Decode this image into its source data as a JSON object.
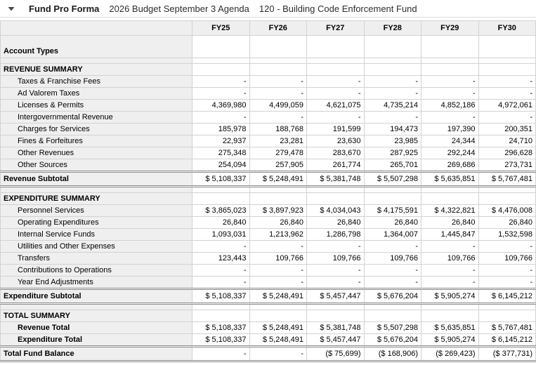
{
  "page": {
    "title": "Fund Pro Forma",
    "budget_name": "2026 Budget September 3 Agenda",
    "fund_name": "120 - Building Code Enforcement Fund",
    "caret_icon": "collapse-caret"
  },
  "colors": {
    "label_column_bg": "#efefef",
    "grid_line": "#d2d2d2",
    "double_rule": "#8a8a8a",
    "text": "#000000"
  },
  "table": {
    "columns": [
      "FY25",
      "FY26",
      "FY27",
      "FY28",
      "FY29",
      "FY30"
    ],
    "rows": [
      {
        "style": "account",
        "label": "Account Types",
        "values": [
          "",
          "",
          "",
          "",
          "",
          ""
        ]
      },
      {
        "style": "spacer",
        "label": "",
        "values": [
          "",
          "",
          "",
          "",
          "",
          ""
        ]
      },
      {
        "style": "section",
        "label": "REVENUE SUMMARY",
        "values": [
          "",
          "",
          "",
          "",
          "",
          ""
        ]
      },
      {
        "style": "item",
        "label": "Taxes & Franchise Fees",
        "values": [
          "-",
          "-",
          "-",
          "-",
          "-",
          "-"
        ]
      },
      {
        "style": "item",
        "label": "Ad Valorem Taxes",
        "values": [
          "-",
          "-",
          "-",
          "-",
          "-",
          "-"
        ]
      },
      {
        "style": "item",
        "label": "Licenses & Permits",
        "values": [
          "4,369,980",
          "4,499,059",
          "4,621,075",
          "4,735,214",
          "4,852,186",
          "4,972,061"
        ]
      },
      {
        "style": "item",
        "label": "Intergovernmental Revenue",
        "values": [
          "-",
          "-",
          "-",
          "-",
          "-",
          "-"
        ]
      },
      {
        "style": "item",
        "label": "Charges for Services",
        "values": [
          "185,978",
          "188,768",
          "191,599",
          "194,473",
          "197,390",
          "200,351"
        ]
      },
      {
        "style": "item",
        "label": "Fines & Forfeitures",
        "values": [
          "22,937",
          "23,281",
          "23,630",
          "23,985",
          "24,344",
          "24,710"
        ]
      },
      {
        "style": "item",
        "label": "Other Revenues",
        "values": [
          "275,348",
          "279,478",
          "283,670",
          "287,925",
          "292,244",
          "296,628"
        ]
      },
      {
        "style": "item",
        "label": "Other Sources",
        "values": [
          "254,094",
          "257,905",
          "261,774",
          "265,701",
          "269,686",
          "273,731"
        ]
      },
      {
        "style": "subtotal",
        "label": "Revenue Subtotal",
        "values": [
          "$ 5,108,337",
          "$ 5,248,491",
          "$ 5,381,748",
          "$ 5,507,298",
          "$ 5,635,851",
          "$ 5,767,481"
        ]
      },
      {
        "style": "spacer",
        "label": "",
        "values": [
          "",
          "",
          "",
          "",
          "",
          ""
        ]
      },
      {
        "style": "section",
        "label": "EXPENDITURE SUMMARY",
        "values": [
          "",
          "",
          "",
          "",
          "",
          ""
        ]
      },
      {
        "style": "item",
        "label": "Personnel Services",
        "values": [
          "$ 3,865,023",
          "$ 3,897,923",
          "$ 4,034,043",
          "$ 4,175,591",
          "$ 4,322,821",
          "$ 4,476,008"
        ]
      },
      {
        "style": "item",
        "label": "Operating Expenditures",
        "values": [
          "26,840",
          "26,840",
          "26,840",
          "26,840",
          "26,840",
          "26,840"
        ]
      },
      {
        "style": "item",
        "label": "Internal Service Funds",
        "values": [
          "1,093,031",
          "1,213,962",
          "1,286,798",
          "1,364,007",
          "1,445,847",
          "1,532,598"
        ]
      },
      {
        "style": "item",
        "label": "Utilities and Other Expenses",
        "values": [
          "-",
          "-",
          "-",
          "-",
          "-",
          "-"
        ]
      },
      {
        "style": "item",
        "label": "Transfers",
        "values": [
          "123,443",
          "109,766",
          "109,766",
          "109,766",
          "109,766",
          "109,766"
        ]
      },
      {
        "style": "item",
        "label": "Contributions to Operations",
        "values": [
          "-",
          "-",
          "-",
          "-",
          "-",
          "-"
        ]
      },
      {
        "style": "item",
        "label": "Year End Adjustments",
        "values": [
          "-",
          "-",
          "-",
          "-",
          "-",
          "-"
        ]
      },
      {
        "style": "subtotal",
        "label": "Expenditure Subtotal",
        "values": [
          "$ 5,108,337",
          "$ 5,248,491",
          "$ 5,457,447",
          "$ 5,676,204",
          "$ 5,905,274",
          "$ 6,145,212"
        ]
      },
      {
        "style": "spacer",
        "label": "",
        "values": [
          "",
          "",
          "",
          "",
          "",
          ""
        ]
      },
      {
        "style": "section",
        "label": "TOTAL SUMMARY",
        "values": [
          "",
          "",
          "",
          "",
          "",
          ""
        ]
      },
      {
        "style": "item-bold",
        "label": "Revenue Total",
        "values": [
          "$ 5,108,337",
          "$ 5,248,491",
          "$ 5,381,748",
          "$ 5,507,298",
          "$ 5,635,851",
          "$ 5,767,481"
        ]
      },
      {
        "style": "item-bold",
        "label": "Expenditure Total",
        "values": [
          "$ 5,108,337",
          "$ 5,248,491",
          "$ 5,457,447",
          "$ 5,676,204",
          "$ 5,905,274",
          "$ 6,145,212"
        ]
      },
      {
        "style": "subtotal",
        "label": "Total Fund Balance",
        "values": [
          "-",
          "-",
          "($ 75,699)",
          "($ 168,906)",
          "($ 269,423)",
          "($ 377,731)"
        ]
      }
    ]
  }
}
